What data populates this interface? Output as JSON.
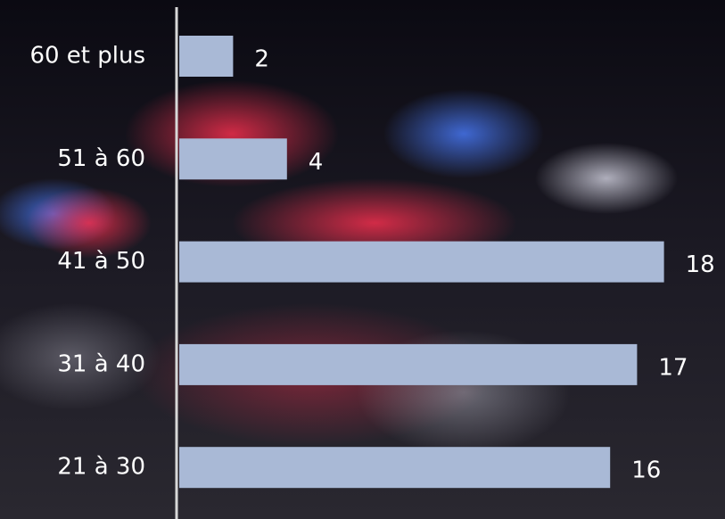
{
  "chart_data": {
    "type": "bar",
    "orientation": "horizontal",
    "categories": [
      "60 et plus",
      "51 à 60",
      "41 à 50",
      "31 à 40",
      "21 à 30"
    ],
    "values": [
      2,
      4,
      18,
      17,
      16
    ],
    "color": "#a9b9d6"
  }
}
